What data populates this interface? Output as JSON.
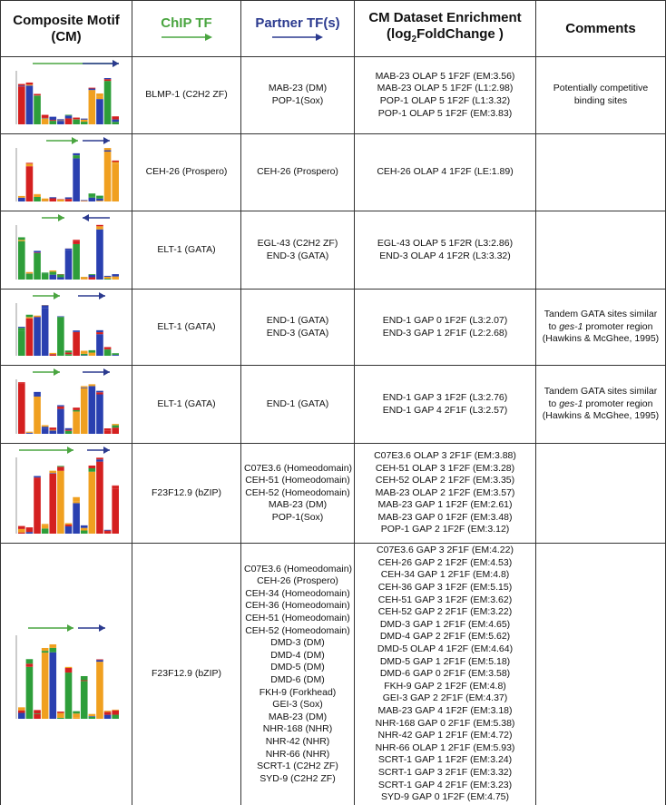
{
  "header": {
    "motif": "Composite Motif (CM)",
    "chip": "ChIP TF",
    "partner": "Partner TF(s)",
    "enrich_line1": "CM Dataset Enrichment",
    "enrich_pre": "(log",
    "enrich_sub": "2",
    "enrich_post": "FoldChange )",
    "comments": "Comments"
  },
  "rows": [
    {
      "chip": "BLMP-1 (C2H2 ZF)",
      "partners": [
        "MAB-23 (DM)",
        "POP-1(Sox)"
      ],
      "enrichment": [
        "MAB-23 OLAP 5 1F2F (EM:3.56)",
        "MAB-23 OLAP 5 1F2F (L1:2.98)",
        "POP-1 OLAP 5 1F2F (L1:3.32)",
        "POP-1 OLAP 5 1F2F (EM:3.83)"
      ],
      "comment": {
        "text": "Potentially competitive binding sites"
      }
    },
    {
      "chip": "CEH-26 (Prospero)",
      "partners": [
        "CEH-26 (Prospero)"
      ],
      "enrichment": [
        "CEH-26 OLAP 4 1F2F (LE:1.89)"
      ]
    },
    {
      "chip": "ELT-1 (GATA)",
      "partners": [
        "EGL-43 (C2H2 ZF)",
        "END-3 (GATA)"
      ],
      "enrichment": [
        "EGL-43 OLAP 5 1F2R (L3:2.86)",
        "END-3 OLAP 4 1F2R (L3:3.32)"
      ]
    },
    {
      "chip": "ELT-1 (GATA)",
      "partners": [
        "END-1 (GATA)",
        "END-3 (GATA)"
      ],
      "enrichment": [
        "END-1 GAP 0 1F2F (L3:2.07)",
        "END-3 GAP 1 2F1F (L2:2.68)"
      ],
      "comment": {
        "before": "Tandem GATA sites similar to ",
        "italic": "ges-1",
        "after": " promoter region (Hawkins & McGhee, 1995)"
      }
    },
    {
      "chip": "ELT-1 (GATA)",
      "partners": [
        "END-1 (GATA)"
      ],
      "enrichment": [
        "END-1 GAP 3 1F2F (L3:2.76)",
        "END-1 GAP 4 2F1F (L3:2.57)"
      ],
      "comment": {
        "before": "Tandem GATA sites similar to ",
        "italic": "ges-1",
        "after": " promoter region (Hawkins & McGhee, 1995)"
      }
    },
    {
      "chip": "F23F12.9 (bZIP)",
      "partners": [
        "C07E3.6 (Homeodomain)",
        "CEH-51 (Homeodomain)",
        "CEH-52 (Homeodomain)",
        "MAB-23 (DM)",
        "POP-1(Sox)"
      ],
      "enrichment": [
        "C07E3.6 OLAP 3 2F1F (EM:3.88)",
        "CEH-51 OLAP 3 1F2F (EM:3.28)",
        "CEH-52 OLAP 2 1F2F (EM:3.35)",
        "MAB-23 OLAP 2 1F2F (EM:3.57)",
        "MAB-23 GAP 1 1F2F (EM:2.61)",
        "MAB-23 GAP 0 1F2F (EM:3.48)",
        "POP-1 GAP 2 1F2F (EM:3.12)"
      ]
    },
    {
      "chip": "F23F12.9 (bZIP)",
      "partners": [
        "C07E3.6 (Homeodomain)",
        "CEH-26 (Prospero)",
        "CEH-34 (Homeodomain)",
        "CEH-36 (Homeodomain)",
        "CEH-51 (Homeodomain)",
        "CEH-52 (Homeodomain)",
        "DMD-3 (DM)",
        "DMD-4 (DM)",
        "DMD-5 (DM)",
        "DMD-6 (DM)",
        "FKH-9 (Forkhead)",
        "GEI-3 (Sox)",
        "MAB-23 (DM)",
        "NHR-168 (NHR)",
        "NHR-42 (NHR)",
        "NHR-66 (NHR)",
        "SCRT-1 (C2H2 ZF)",
        "SYD-9 (C2H2 ZF)"
      ],
      "enrichment": [
        "C07E3.6 GAP 3 2F1F (EM:4.22)",
        "CEH-26 GAP 2 1F2F (EM:4.53)",
        "CEH-34 GAP 1 2F1F (EM:4.8)",
        "CEH-36 GAP 3 1F2F (EM:5.15)",
        "CEH-51 GAP 3 1F2F (EM:3.62)",
        "CEH-52 GAP 2 2F1F (EM:3.22)",
        "DMD-3 GAP 1 2F1F (EM:4.65)",
        "DMD-4 GAP 2 2F1F (EM:5.62)",
        "DMD-5 OLAP 4 1F2F (EM:4.64)",
        "DMD-5 GAP 1 2F1F (EM:5.18)",
        "DMD-6 GAP 0 2F1F (EM:3.58)",
        "FKH-9 GAP 2 1F2F (EM:4.8)",
        "GEI-3 GAP 2 2F1F (EM:4.37)",
        "MAB-23 GAP 4 1F2F (EM:3.18)",
        "NHR-168 GAP 0 2F1F (EM:5.38)",
        "NHR-42 GAP 1 2F1F (EM:4.72)",
        "NHR-66 OLAP 1 2F1F (EM:5.93)",
        "SCRT-1 GAP 1 1F2F (EM:3.24)",
        "SCRT-1 GAP 3 2F1F (EM:3.32)",
        "SCRT-1 GAP 4 2F1F (EM:3.23)",
        "SYD-9 GAP 0 1F2F (EM:4.75)"
      ]
    }
  ]
}
